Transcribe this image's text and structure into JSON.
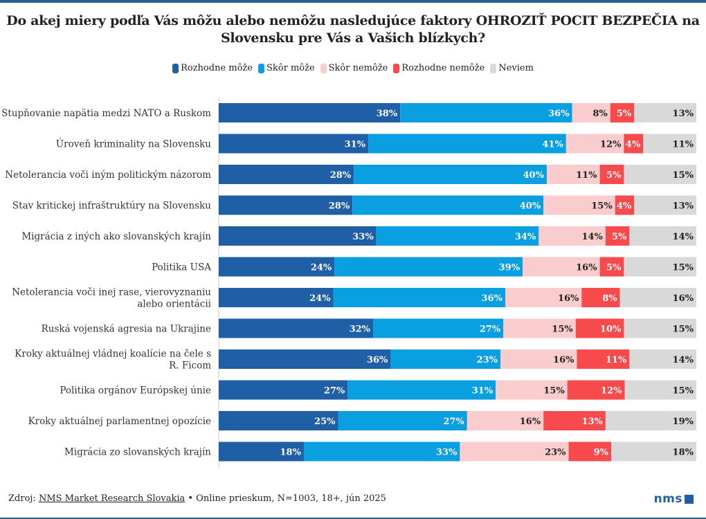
{
  "title": "Do akej miery podľa Vás môžu alebo nemôžu nasledujúce faktory OHROZIŤ POCIT BEZPEČIA na Slovensku pre Vás a Vašich blízkych?",
  "footer": {
    "prefix": "Zdroj: ",
    "source_link": "NMS Market Research Slovakia",
    "suffix": " • Online prieskum, N=1003, 18+, jún 2025"
  },
  "logo": "nms",
  "chart_data": {
    "type": "bar",
    "orientation": "horizontal",
    "stacked": "100%",
    "title": "Do akej miery podľa Vás môžu alebo nemôžu nasledujúce faktory OHROZIŤ POCIT BEZPEČIA na Slovensku pre Vás a Vašich blízkych?",
    "legend_position": "top",
    "unit": "%",
    "grid": false,
    "categories": [
      "Stupňovanie napätia medzi NATO a Ruskom",
      "Úroveň kriminality na Slovensku",
      "Netolerancia voči iným politickým názorom",
      "Stav kritickej infraštruktúry na Slovensku",
      "Migrácia z iných ako slovanských krajín",
      "Politika USA",
      "Netolerancia voči inej rase, vierovyznaniu alebo orientácii",
      "Ruská vojenská agresia na Ukrajine",
      "Kroky aktuálnej vládnej koalície na čele s R. Ficom",
      "Politika orgánov Európskej únie",
      "Kroky aktuálnej parlamentnej opozície",
      "Migrácia zo slovanských krajín"
    ],
    "series": [
      {
        "name": "Rozhodne môže",
        "color": "#1f5fa6",
        "label_color": "#ffffff",
        "values": [
          38,
          31,
          28,
          28,
          33,
          24,
          24,
          32,
          36,
          27,
          25,
          18
        ]
      },
      {
        "name": "Skôr môže",
        "color": "#0a9fe0",
        "label_color": "#ffffff",
        "values": [
          36,
          41,
          40,
          40,
          34,
          39,
          36,
          27,
          23,
          31,
          27,
          33
        ]
      },
      {
        "name": "Skôr nemôže",
        "color": "#f9cdcd",
        "label_color": "#222222",
        "values": [
          8,
          12,
          11,
          15,
          14,
          16,
          16,
          15,
          16,
          15,
          16,
          23
        ]
      },
      {
        "name": "Rozhodne nemôže",
        "color": "#f64a4c",
        "label_color": "#ffffff",
        "values": [
          5,
          4,
          5,
          4,
          5,
          5,
          8,
          10,
          11,
          12,
          13,
          9
        ]
      },
      {
        "name": "Neviem",
        "color": "#d9d9d9",
        "label_color": "#222222",
        "values": [
          13,
          11,
          15,
          13,
          14,
          15,
          16,
          15,
          14,
          15,
          19,
          18
        ]
      }
    ]
  }
}
